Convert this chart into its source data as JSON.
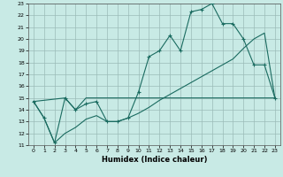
{
  "xlabel": "Humidex (Indice chaleur)",
  "xlim": [
    -0.5,
    23.5
  ],
  "ylim": [
    11,
    23
  ],
  "xticks": [
    0,
    1,
    2,
    3,
    4,
    5,
    6,
    7,
    8,
    9,
    10,
    11,
    12,
    13,
    14,
    15,
    16,
    17,
    18,
    19,
    20,
    21,
    22,
    23
  ],
  "yticks": [
    11,
    12,
    13,
    14,
    15,
    16,
    17,
    18,
    19,
    20,
    21,
    22,
    23
  ],
  "background_color": "#c8eae5",
  "grid_color": "#9bbcb8",
  "line_color": "#1a6b60",
  "line1_x": [
    0,
    1,
    2,
    3,
    4,
    5,
    6,
    7,
    8,
    9,
    10,
    11,
    12,
    13,
    14,
    15,
    16,
    17,
    18,
    19,
    20,
    21,
    22,
    23
  ],
  "line1_y": [
    14.7,
    13.3,
    11.2,
    15.0,
    14.0,
    14.5,
    14.7,
    13.0,
    13.0,
    13.3,
    15.5,
    18.5,
    19.0,
    20.3,
    19.0,
    22.3,
    22.5,
    23.0,
    21.3,
    21.3,
    20.0,
    17.8,
    17.8,
    15.0
  ],
  "line2_x": [
    0,
    3,
    4,
    5,
    6,
    7,
    8,
    9,
    10,
    11,
    12,
    13,
    14,
    15,
    16,
    17,
    18,
    19,
    20,
    21,
    22,
    23
  ],
  "line2_y": [
    14.7,
    15.0,
    14.0,
    15.0,
    15.0,
    15.0,
    15.0,
    15.0,
    15.0,
    15.0,
    15.0,
    15.0,
    15.0,
    15.0,
    15.0,
    15.0,
    15.0,
    15.0,
    15.0,
    15.0,
    15.0,
    15.0
  ],
  "line3_x": [
    0,
    1,
    2,
    3,
    4,
    5,
    6,
    7,
    8,
    9,
    10,
    11,
    12,
    13,
    14,
    15,
    16,
    17,
    18,
    19,
    20,
    21,
    22,
    23
  ],
  "line3_y": [
    14.7,
    13.3,
    11.2,
    12.0,
    12.5,
    13.2,
    13.5,
    13.0,
    13.0,
    13.3,
    13.7,
    14.2,
    14.8,
    15.3,
    15.8,
    16.3,
    16.8,
    17.3,
    17.8,
    18.3,
    19.2,
    20.0,
    20.5,
    15.0
  ]
}
